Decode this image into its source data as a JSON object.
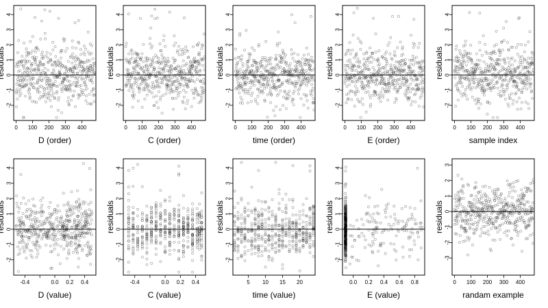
{
  "chart_data": [
    {
      "id": "p1",
      "type": "scatter",
      "xlabel": "D (order)",
      "ylabel": "residuals",
      "xlim": [
        -15,
        485
      ],
      "ylim": [
        -3,
        4.6
      ],
      "xticks": [
        0,
        100,
        200,
        300,
        400
      ],
      "xtick_labels": [
        "0",
        "100",
        "200",
        "300",
        "400"
      ],
      "yticks": [
        -2,
        -1,
        0,
        1,
        2,
        3,
        4
      ],
      "ytick_labels": [
        "-2",
        "-1",
        "0",
        "1",
        "2",
        "3",
        "4"
      ],
      "hline": 0,
      "gen": {
        "mode": "index",
        "n": 480,
        "seed": 11
      }
    },
    {
      "id": "p2",
      "type": "scatter",
      "xlabel": "C (order)",
      "ylabel": "residuals",
      "xlim": [
        -15,
        485
      ],
      "ylim": [
        -3,
        4.6
      ],
      "xticks": [
        0,
        100,
        200,
        300,
        400
      ],
      "xtick_labels": [
        "0",
        "100",
        "200",
        "300",
        "400"
      ],
      "yticks": [
        -2,
        -1,
        0,
        1,
        2,
        3,
        4
      ],
      "ytick_labels": [
        "-2",
        "-1",
        "0",
        "1",
        "2",
        "3",
        "4"
      ],
      "hline": 0,
      "gen": {
        "mode": "index",
        "n": 480,
        "seed": 23
      }
    },
    {
      "id": "p3",
      "type": "scatter",
      "xlabel": "time (order)",
      "ylabel": "residuals",
      "xlim": [
        -15,
        485
      ],
      "ylim": [
        -3,
        4.6
      ],
      "xticks": [
        0,
        100,
        200,
        300,
        400
      ],
      "xtick_labels": [
        "0",
        "100",
        "200",
        "300",
        "400"
      ],
      "yticks": [
        -2,
        -1,
        0,
        1,
        2,
        3,
        4
      ],
      "ytick_labels": [
        "-2",
        "-1",
        "0",
        "1",
        "2",
        "3",
        "4"
      ],
      "hline": 0,
      "gen": {
        "mode": "index",
        "n": 480,
        "seed": 37
      }
    },
    {
      "id": "p4",
      "type": "scatter",
      "xlabel": "E (order)",
      "ylabel": "residuals",
      "xlim": [
        -15,
        485
      ],
      "ylim": [
        -3,
        4.6
      ],
      "xticks": [
        0,
        100,
        200,
        300,
        400
      ],
      "xtick_labels": [
        "0",
        "100",
        "200",
        "300",
        "400"
      ],
      "yticks": [
        -2,
        -1,
        0,
        1,
        2,
        3,
        4
      ],
      "ytick_labels": [
        "-2",
        "-1",
        "0",
        "1",
        "2",
        "3",
        "4"
      ],
      "hline": 0,
      "gen": {
        "mode": "index",
        "n": 480,
        "seed": 41
      }
    },
    {
      "id": "p5",
      "type": "scatter",
      "xlabel": "sample index",
      "ylabel": "residuals",
      "xlim": [
        -15,
        485
      ],
      "ylim": [
        -3,
        4.6
      ],
      "xticks": [
        0,
        100,
        200,
        300,
        400
      ],
      "xtick_labels": [
        "0",
        "100",
        "200",
        "300",
        "400"
      ],
      "yticks": [
        -2,
        -1,
        0,
        1,
        2,
        3,
        4
      ],
      "ytick_labels": [
        "-2",
        "-1",
        "0",
        "1",
        "2",
        "3",
        "4"
      ],
      "hline": 0,
      "gen": {
        "mode": "index",
        "n": 480,
        "seed": 53
      }
    },
    {
      "id": "p6",
      "type": "scatter",
      "xlabel": "D (value)",
      "ylabel": "residuals",
      "xlim": [
        -0.55,
        0.55
      ],
      "ylim": [
        -3,
        4.6
      ],
      "xticks": [
        -0.4,
        -0.2,
        0,
        0.2,
        0.4
      ],
      "xtick_labels": [
        "-0.4",
        "",
        "0.0",
        "0.2",
        "0.4"
      ],
      "yticks": [
        -2,
        -1,
        0,
        1,
        2,
        3,
        4
      ],
      "ytick_labels": [
        "-2",
        "-1",
        "0",
        "1",
        "2",
        "3",
        "4"
      ],
      "hline": 0,
      "gen": {
        "mode": "continuous",
        "n": 480,
        "seed": 61,
        "xmin": -0.52,
        "xmax": 0.5
      }
    },
    {
      "id": "p7",
      "type": "scatter",
      "xlabel": "C (value)",
      "ylabel": "residuals",
      "xlim": [
        -0.55,
        0.53
      ],
      "ylim": [
        -3,
        4.6
      ],
      "xticks": [
        -0.4,
        -0.2,
        0,
        0.2,
        0.4
      ],
      "xtick_labels": [
        "-0.4",
        "",
        "0.0",
        "0.2",
        "0.4"
      ],
      "yticks": [
        -2,
        -1,
        0,
        1,
        2,
        3,
        4
      ],
      "ytick_labels": [
        "-2",
        "-1",
        "0",
        "1",
        "2",
        "3",
        "4"
      ],
      "hline": 0,
      "gen": {
        "mode": "discrete",
        "n": 480,
        "seed": 71,
        "levels": [
          -0.48,
          -0.42,
          -0.36,
          -0.3,
          -0.24,
          -0.18,
          -0.12,
          -0.06,
          0.0,
          0.06,
          0.12,
          0.18,
          0.24,
          0.3,
          0.36,
          0.42,
          0.45,
          0.48
        ]
      }
    },
    {
      "id": "p8",
      "type": "scatter",
      "xlabel": "time (value)",
      "ylabel": "residuals",
      "xlim": [
        0.5,
        24.5
      ],
      "ylim": [
        -3,
        4.6
      ],
      "xticks": [
        5,
        10,
        15,
        20
      ],
      "xtick_labels": [
        "5",
        "10",
        "15",
        "20"
      ],
      "yticks": [
        -2,
        -1,
        0,
        1,
        2,
        3,
        4
      ],
      "ytick_labels": [
        "-2",
        "-1",
        "0",
        "1",
        "2",
        "3",
        "4"
      ],
      "hline": 0,
      "gen": {
        "mode": "discrete",
        "n": 480,
        "seed": 83,
        "levels": [
          1,
          2,
          3,
          4,
          5,
          6,
          7,
          8,
          9,
          10,
          11,
          12,
          13,
          14,
          15,
          16,
          17,
          18,
          19,
          20,
          21,
          22,
          23,
          24
        ]
      }
    },
    {
      "id": "p9",
      "type": "scatter",
      "xlabel": "E (value)",
      "ylabel": "residuals",
      "xlim": [
        -0.14,
        0.93
      ],
      "ylim": [
        -3,
        4.6
      ],
      "xticks": [
        0,
        0.2,
        0.4,
        0.6,
        0.8
      ],
      "xtick_labels": [
        "0.0",
        "0.2",
        "0.4",
        "0.6",
        "0.8"
      ],
      "yticks": [
        -2,
        -1,
        0,
        1,
        2,
        3,
        4
      ],
      "ytick_labels": [
        "-2",
        "-1",
        "0",
        "1",
        "2",
        "3",
        "4"
      ],
      "hline": 0,
      "gen": {
        "mode": "skew",
        "n": 480,
        "seed": 97,
        "x0": -0.1,
        "xmax": 0.9
      }
    },
    {
      "id": "p10",
      "type": "scatter",
      "xlabel": "randam example",
      "ylabel": "residuals",
      "xlim": [
        -15,
        485
      ],
      "ylim": [
        -4.1,
        3.4
      ],
      "xticks": [
        0,
        100,
        200,
        300,
        400
      ],
      "xtick_labels": [
        "0",
        "100",
        "200",
        "300",
        "400"
      ],
      "yticks": [
        -3,
        -2,
        -1,
        0,
        1,
        2,
        3
      ],
      "ytick_labels": [
        "-3",
        "-2",
        "-1",
        "0",
        "1",
        "2",
        "3"
      ],
      "hline": 0,
      "gen": {
        "mode": "index",
        "n": 480,
        "seed": 109
      }
    }
  ]
}
